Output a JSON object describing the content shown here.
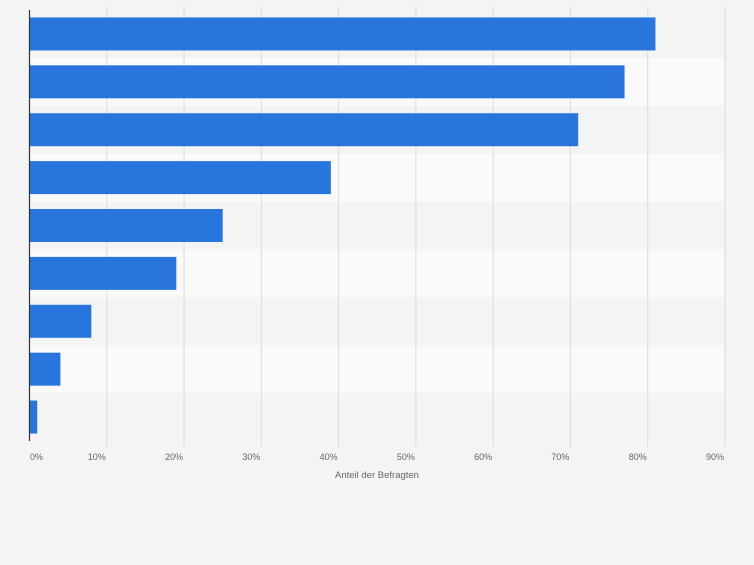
{
  "chart_data": {
    "type": "bar",
    "orientation": "horizontal",
    "categories": [
      "",
      "",
      "",
      "",
      "",
      "",
      "",
      "",
      ""
    ],
    "values": [
      81,
      77,
      71,
      39,
      25,
      19,
      8,
      4,
      1
    ],
    "xlabel": "Anteil der Befragten",
    "xlim": [
      0,
      90
    ],
    "ticks": [
      "0%",
      "10%",
      "20%",
      "30%",
      "40%",
      "50%",
      "60%",
      "70%",
      "80%",
      "90%"
    ],
    "grid": true,
    "legend": "none"
  },
  "colors": {
    "bar": "#2876dd",
    "background": "#f4f4f4",
    "band_alt": "#fafafa",
    "grid": "#dcdcdc",
    "axis": "#333333",
    "tick_text": "#666666"
  }
}
